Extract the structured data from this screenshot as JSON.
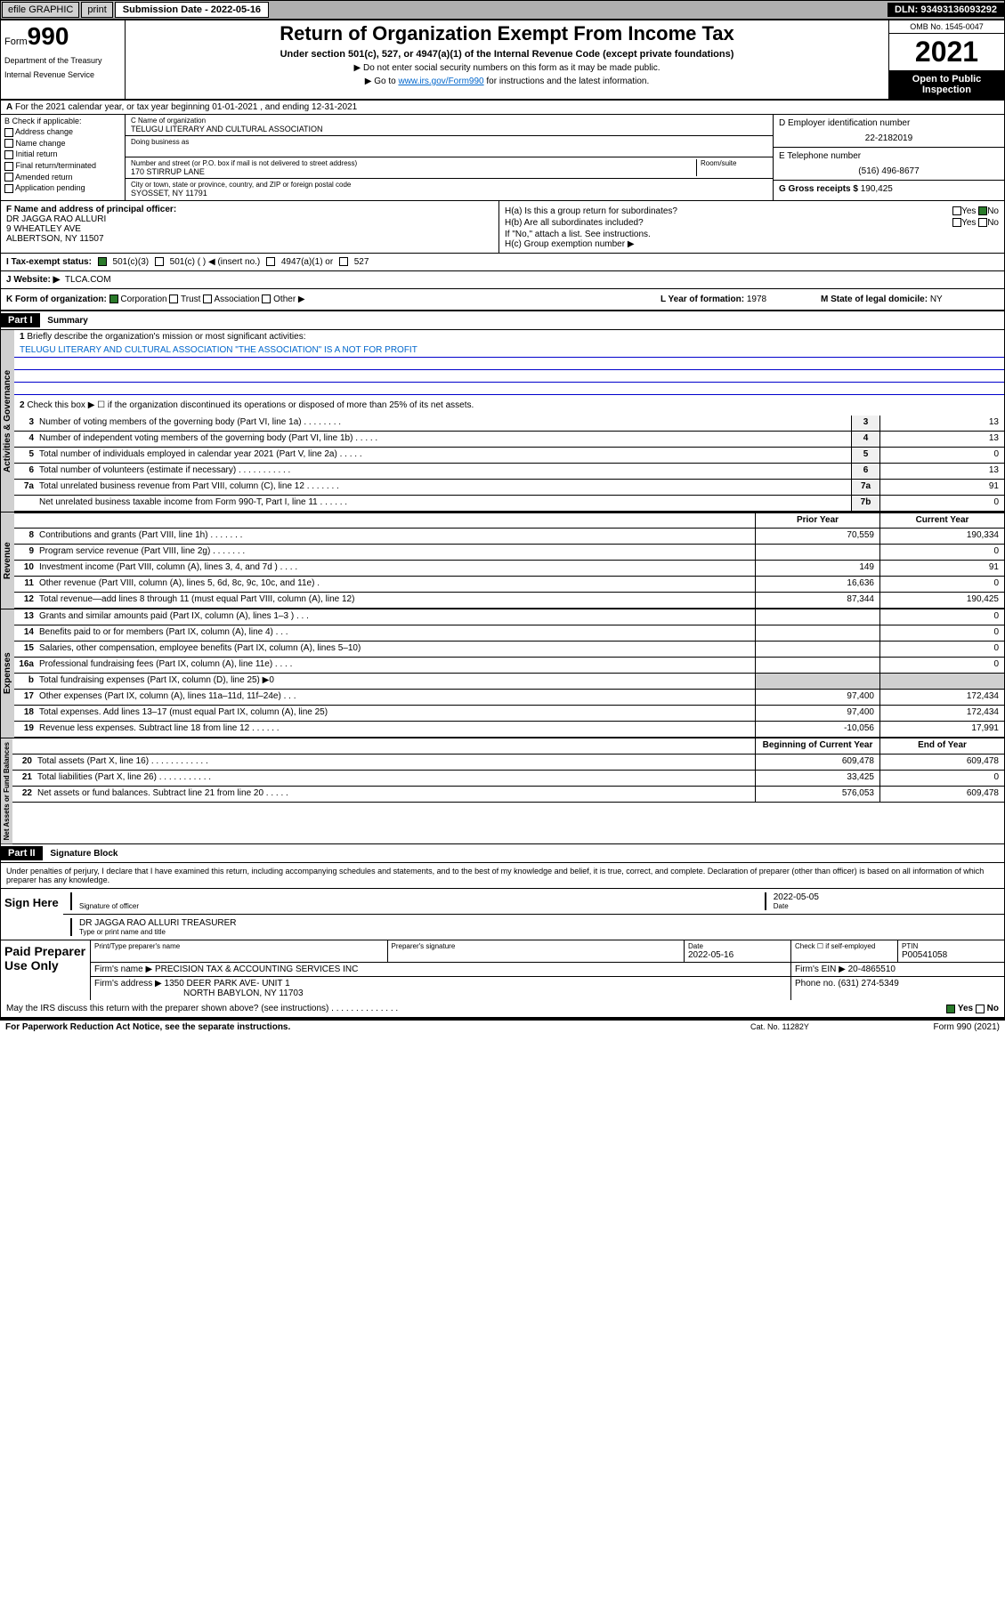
{
  "topbar": {
    "efile": "efile GRAPHIC",
    "print": "print",
    "sub_label": "Submission Date - 2022-05-16",
    "dln": "DLN: 93493136093292"
  },
  "header": {
    "form_prefix": "Form",
    "form_num": "990",
    "dept": "Department of the Treasury",
    "irs": "Internal Revenue Service",
    "title": "Return of Organization Exempt From Income Tax",
    "subtitle": "Under section 501(c), 527, or 4947(a)(1) of the Internal Revenue Code (except private foundations)",
    "note1": "▶ Do not enter social security numbers on this form as it may be made public.",
    "note2_pre": "▶ Go to ",
    "note2_link": "www.irs.gov/Form990",
    "note2_post": " for instructions and the latest information.",
    "omb": "OMB No. 1545-0047",
    "year": "2021",
    "open": "Open to Public Inspection"
  },
  "row_a": "For the 2021 calendar year, or tax year beginning 01-01-2021    , and ending 12-31-2021",
  "col_b": {
    "label": "B Check if applicable:",
    "items": [
      "Address change",
      "Name change",
      "Initial return",
      "Final return/terminated",
      "Amended return",
      "Application pending"
    ]
  },
  "col_c": {
    "name_label": "C Name of organization",
    "name": "TELUGU LITERARY AND CULTURAL ASSOCIATION",
    "dba_label": "Doing business as",
    "dba": "",
    "addr_label": "Number and street (or P.O. box if mail is not delivered to street address)",
    "room_label": "Room/suite",
    "addr": "170 STIRRUP LANE",
    "city_label": "City or town, state or province, country, and ZIP or foreign postal code",
    "city": "SYOSSET, NY  11791"
  },
  "col_de": {
    "d_label": "D Employer identification number",
    "d_val": "22-2182019",
    "e_label": "E Telephone number",
    "e_val": "(516) 496-8677",
    "g_label": "G Gross receipts $",
    "g_val": "190,425"
  },
  "col_f": {
    "label": "F  Name and address of principal officer:",
    "line1": "DR JAGGA RAO ALLURI",
    "line2": "9 WHEATLEY AVE",
    "line3": "ALBERTSON, NY  11507"
  },
  "col_h": {
    "ha": "H(a)  Is this a group return for subordinates?",
    "hb": "H(b)  Are all subordinates included?",
    "hb_note": "If \"No,\" attach a list. See instructions.",
    "hc": "H(c)  Group exemption number ▶",
    "yes": "Yes",
    "no": "No"
  },
  "row_i": {
    "label": "I    Tax-exempt status:",
    "opts": [
      "501(c)(3)",
      "501(c) (  ) ◀ (insert no.)",
      "4947(a)(1) or",
      "527"
    ]
  },
  "row_j": {
    "label": "J    Website: ▶",
    "val": "TLCA.COM"
  },
  "row_k": {
    "label": "K Form of organization:",
    "opts": [
      "Corporation",
      "Trust",
      "Association",
      "Other ▶"
    ]
  },
  "row_l": {
    "label": "L Year of formation:",
    "val": "1978"
  },
  "row_m": {
    "label": "M State of legal domicile:",
    "val": "NY"
  },
  "part1": {
    "hdr": "Part I",
    "title": "Summary",
    "q1": "Briefly describe the organization's mission or most significant activities:",
    "q1_val": "TELUGU LITERARY AND CULTURAL ASSOCIATION \"THE ASSOCIATION\" IS A NOT FOR PROFIT",
    "q2": "Check this box ▶ ☐  if the organization discontinued its operations or disposed of more than 25% of its net assets.",
    "governance_label": "Activities & Governance",
    "revenue_label": "Revenue",
    "expenses_label": "Expenses",
    "netassets_label": "Net Assets or Fund Balances",
    "rows_gov": [
      {
        "n": "3",
        "t": "Number of voting members of the governing body (Part VI, line 1a)  .   .   .   .   .   .   .   .",
        "c": "3",
        "v": "13"
      },
      {
        "n": "4",
        "t": "Number of independent voting members of the governing body (Part VI, line 1b)  .   .   .   .   .",
        "c": "4",
        "v": "13"
      },
      {
        "n": "5",
        "t": "Total number of individuals employed in calendar year 2021 (Part V, line 2a)   .   .   .   .   .",
        "c": "5",
        "v": "0"
      },
      {
        "n": "6",
        "t": "Total number of volunteers (estimate if necessary)   .   .   .   .   .   .   .   .   .   .   .",
        "c": "6",
        "v": "13"
      },
      {
        "n": "7a",
        "t": "Total unrelated business revenue from Part VIII, column (C), line 12  .   .   .   .   .   .   .",
        "c": "7a",
        "v": "91"
      },
      {
        "n": "",
        "t": "Net unrelated business taxable income from Form 990-T, Part I, line 11   .   .   .   .   .   .",
        "c": "7b",
        "v": "0"
      }
    ],
    "prior_hdr": "Prior Year",
    "curr_hdr": "Current Year",
    "rows_rev": [
      {
        "n": "8",
        "t": "Contributions and grants (Part VIII, line 1h)   .   .   .   .   .   .   .",
        "p": "70,559",
        "c": "190,334"
      },
      {
        "n": "9",
        "t": "Program service revenue (Part VIII, line 2g)   .   .   .   .   .   .   .",
        "p": "",
        "c": "0"
      },
      {
        "n": "10",
        "t": "Investment income (Part VIII, column (A), lines 3, 4, and 7d )   .   .   .   .",
        "p": "149",
        "c": "91"
      },
      {
        "n": "11",
        "t": "Other revenue (Part VIII, column (A), lines 5, 6d, 8c, 9c, 10c, and 11e)   .",
        "p": "16,636",
        "c": "0"
      },
      {
        "n": "12",
        "t": "Total revenue—add lines 8 through 11 (must equal Part VIII, column (A), line 12)",
        "p": "87,344",
        "c": "190,425"
      }
    ],
    "rows_exp": [
      {
        "n": "13",
        "t": "Grants and similar amounts paid (Part IX, column (A), lines 1–3 )   .   .   .",
        "p": "",
        "c": "0"
      },
      {
        "n": "14",
        "t": "Benefits paid to or for members (Part IX, column (A), line 4)   .   .   .",
        "p": "",
        "c": "0"
      },
      {
        "n": "15",
        "t": "Salaries, other compensation, employee benefits (Part IX, column (A), lines 5–10)",
        "p": "",
        "c": "0"
      },
      {
        "n": "16a",
        "t": "Professional fundraising fees (Part IX, column (A), line 11e)   .   .   .   .",
        "p": "",
        "c": "0"
      },
      {
        "n": "b",
        "t": "Total fundraising expenses (Part IX, column (D), line 25) ▶0",
        "p": "grey",
        "c": "grey"
      },
      {
        "n": "17",
        "t": "Other expenses (Part IX, column (A), lines 11a–11d, 11f–24e)   .   .   .",
        "p": "97,400",
        "c": "172,434"
      },
      {
        "n": "18",
        "t": "Total expenses. Add lines 13–17 (must equal Part IX, column (A), line 25)",
        "p": "97,400",
        "c": "172,434"
      },
      {
        "n": "19",
        "t": "Revenue less expenses. Subtract line 18 from line 12   .   .   .   .   .   .",
        "p": "-10,056",
        "c": "17,991"
      }
    ],
    "beg_hdr": "Beginning of Current Year",
    "end_hdr": "End of Year",
    "rows_net": [
      {
        "n": "20",
        "t": "Total assets (Part X, line 16)  .   .   .   .   .   .   .   .   .   .   .   .",
        "p": "609,478",
        "c": "609,478"
      },
      {
        "n": "21",
        "t": "Total liabilities (Part X, line 26)  .   .   .   .   .   .   .   .   .   .   .",
        "p": "33,425",
        "c": "0"
      },
      {
        "n": "22",
        "t": "Net assets or fund balances. Subtract line 21 from line 20  .   .   .   .   .",
        "p": "576,053",
        "c": "609,478"
      }
    ]
  },
  "part2": {
    "hdr": "Part II",
    "title": "Signature Block",
    "decl": "Under penalties of perjury, I declare that I have examined this return, including accompanying schedules and statements, and to the best of my knowledge and belief, it is true, correct, and complete. Declaration of preparer (other than officer) is based on all information of which preparer has any knowledge.",
    "sign_here": "Sign Here",
    "sig_officer": "Signature of officer",
    "sig_date": "Date",
    "sig_date_val": "2022-05-05",
    "sig_name": "DR JAGGA RAO ALLURI TREASURER",
    "sig_name_label": "Type or print name and title",
    "paid": "Paid Preparer Use Only",
    "prep_name_label": "Print/Type preparer's name",
    "prep_sig_label": "Preparer's signature",
    "prep_date_label": "Date",
    "prep_date": "2022-05-16",
    "prep_check": "Check ☐ if self-employed",
    "ptin_label": "PTIN",
    "ptin": "P00541058",
    "firm_name_label": "Firm's name    ▶",
    "firm_name": "PRECISION TAX & ACCOUNTING SERVICES INC",
    "firm_ein_label": "Firm's EIN ▶",
    "firm_ein": "20-4865510",
    "firm_addr_label": "Firm's address ▶",
    "firm_addr1": "1350 DEER PARK AVE- UNIT 1",
    "firm_addr2": "NORTH BABYLON, NY  11703",
    "phone_label": "Phone no.",
    "phone": "(631) 274-5349",
    "discuss": "May the IRS discuss this return with the preparer shown above? (see instructions)   .   .   .   .   .   .   .   .   .   .   .   .   .   .",
    "discuss_yes": "Yes",
    "discuss_no": "No"
  },
  "footer": {
    "left": "For Paperwork Reduction Act Notice, see the separate instructions.",
    "mid": "Cat. No. 11282Y",
    "right": "Form 990 (2021)"
  },
  "colors": {
    "link": "#0066cc",
    "check_green": "#2a7a2a",
    "grey_bg": "#d0d0d0",
    "black": "#000000"
  }
}
